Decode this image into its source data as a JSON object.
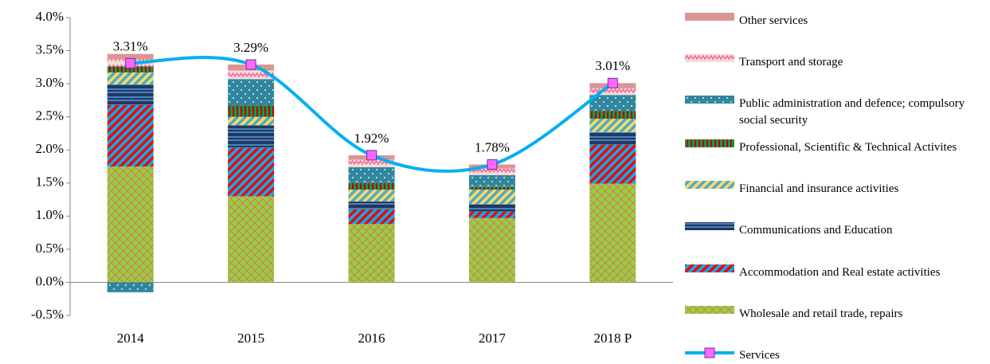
{
  "chart_data": {
    "type": "bar",
    "stacked": true,
    "categories": [
      "2014",
      "2015",
      "2016",
      "2017",
      "2018 P"
    ],
    "ylim": [
      -0.5,
      4.0
    ],
    "yticks": [
      {
        "value": -0.5,
        "label": "-0.5%"
      },
      {
        "value": 0,
        "label": "0.0%"
      },
      {
        "value": 0.5,
        "label": "0.5%"
      },
      {
        "value": 1.0,
        "label": "1.0%"
      },
      {
        "value": 1.5,
        "label": "1.5%"
      },
      {
        "value": 2.0,
        "label": "2.0%"
      },
      {
        "value": 2.5,
        "label": "2.5%"
      },
      {
        "value": 3.0,
        "label": "3.0%"
      },
      {
        "value": 3.5,
        "label": "3.5%"
      },
      {
        "value": 4.0,
        "label": "4.0%"
      }
    ],
    "series": [
      {
        "name": "Wholesale and retail trade, repairs",
        "color": "#92d050",
        "values": [
          1.75,
          1.3,
          0.88,
          0.97,
          1.49
        ]
      },
      {
        "name": "Accommodation and Real estate activities",
        "color": "#00b0f0",
        "values": [
          0.93,
          0.73,
          0.22,
          0.1,
          0.59
        ]
      },
      {
        "name": "Communications and Education",
        "color": "#1f3864",
        "values": [
          0.31,
          0.34,
          0.12,
          0.11,
          0.19
        ]
      },
      {
        "name": "Financial and insurance activities",
        "color": "#4bacc6",
        "values": [
          0.18,
          0.13,
          0.18,
          0.22,
          0.2
        ]
      },
      {
        "name": "Professional, Scientific & Technical Activites",
        "color": "#00a650",
        "values": [
          0.09,
          0.17,
          0.1,
          0.04,
          0.12
        ]
      },
      {
        "name": "Public administration and defence; compulsory social security",
        "color": "#31859c",
        "values": [
          -0.15,
          0.4,
          0.24,
          0.18,
          0.24
        ]
      },
      {
        "name": "Transport and storage",
        "color": "#f2dcdb",
        "values": [
          0.11,
          0.13,
          0.11,
          0.1,
          0.1
        ]
      },
      {
        "name": "Other services",
        "color": "#d99694",
        "values": [
          0.08,
          0.09,
          0.07,
          0.06,
          0.08
        ]
      },
      {
        "name": "Services",
        "type": "line",
        "color": "#00b0f0",
        "marker_color": "#ff66ff",
        "values": [
          3.31,
          3.29,
          1.92,
          1.78,
          3.01
        ],
        "value_labels": [
          "3.31%",
          "3.29%",
          "1.92%",
          "1.78%",
          "3.01%"
        ]
      }
    ]
  }
}
